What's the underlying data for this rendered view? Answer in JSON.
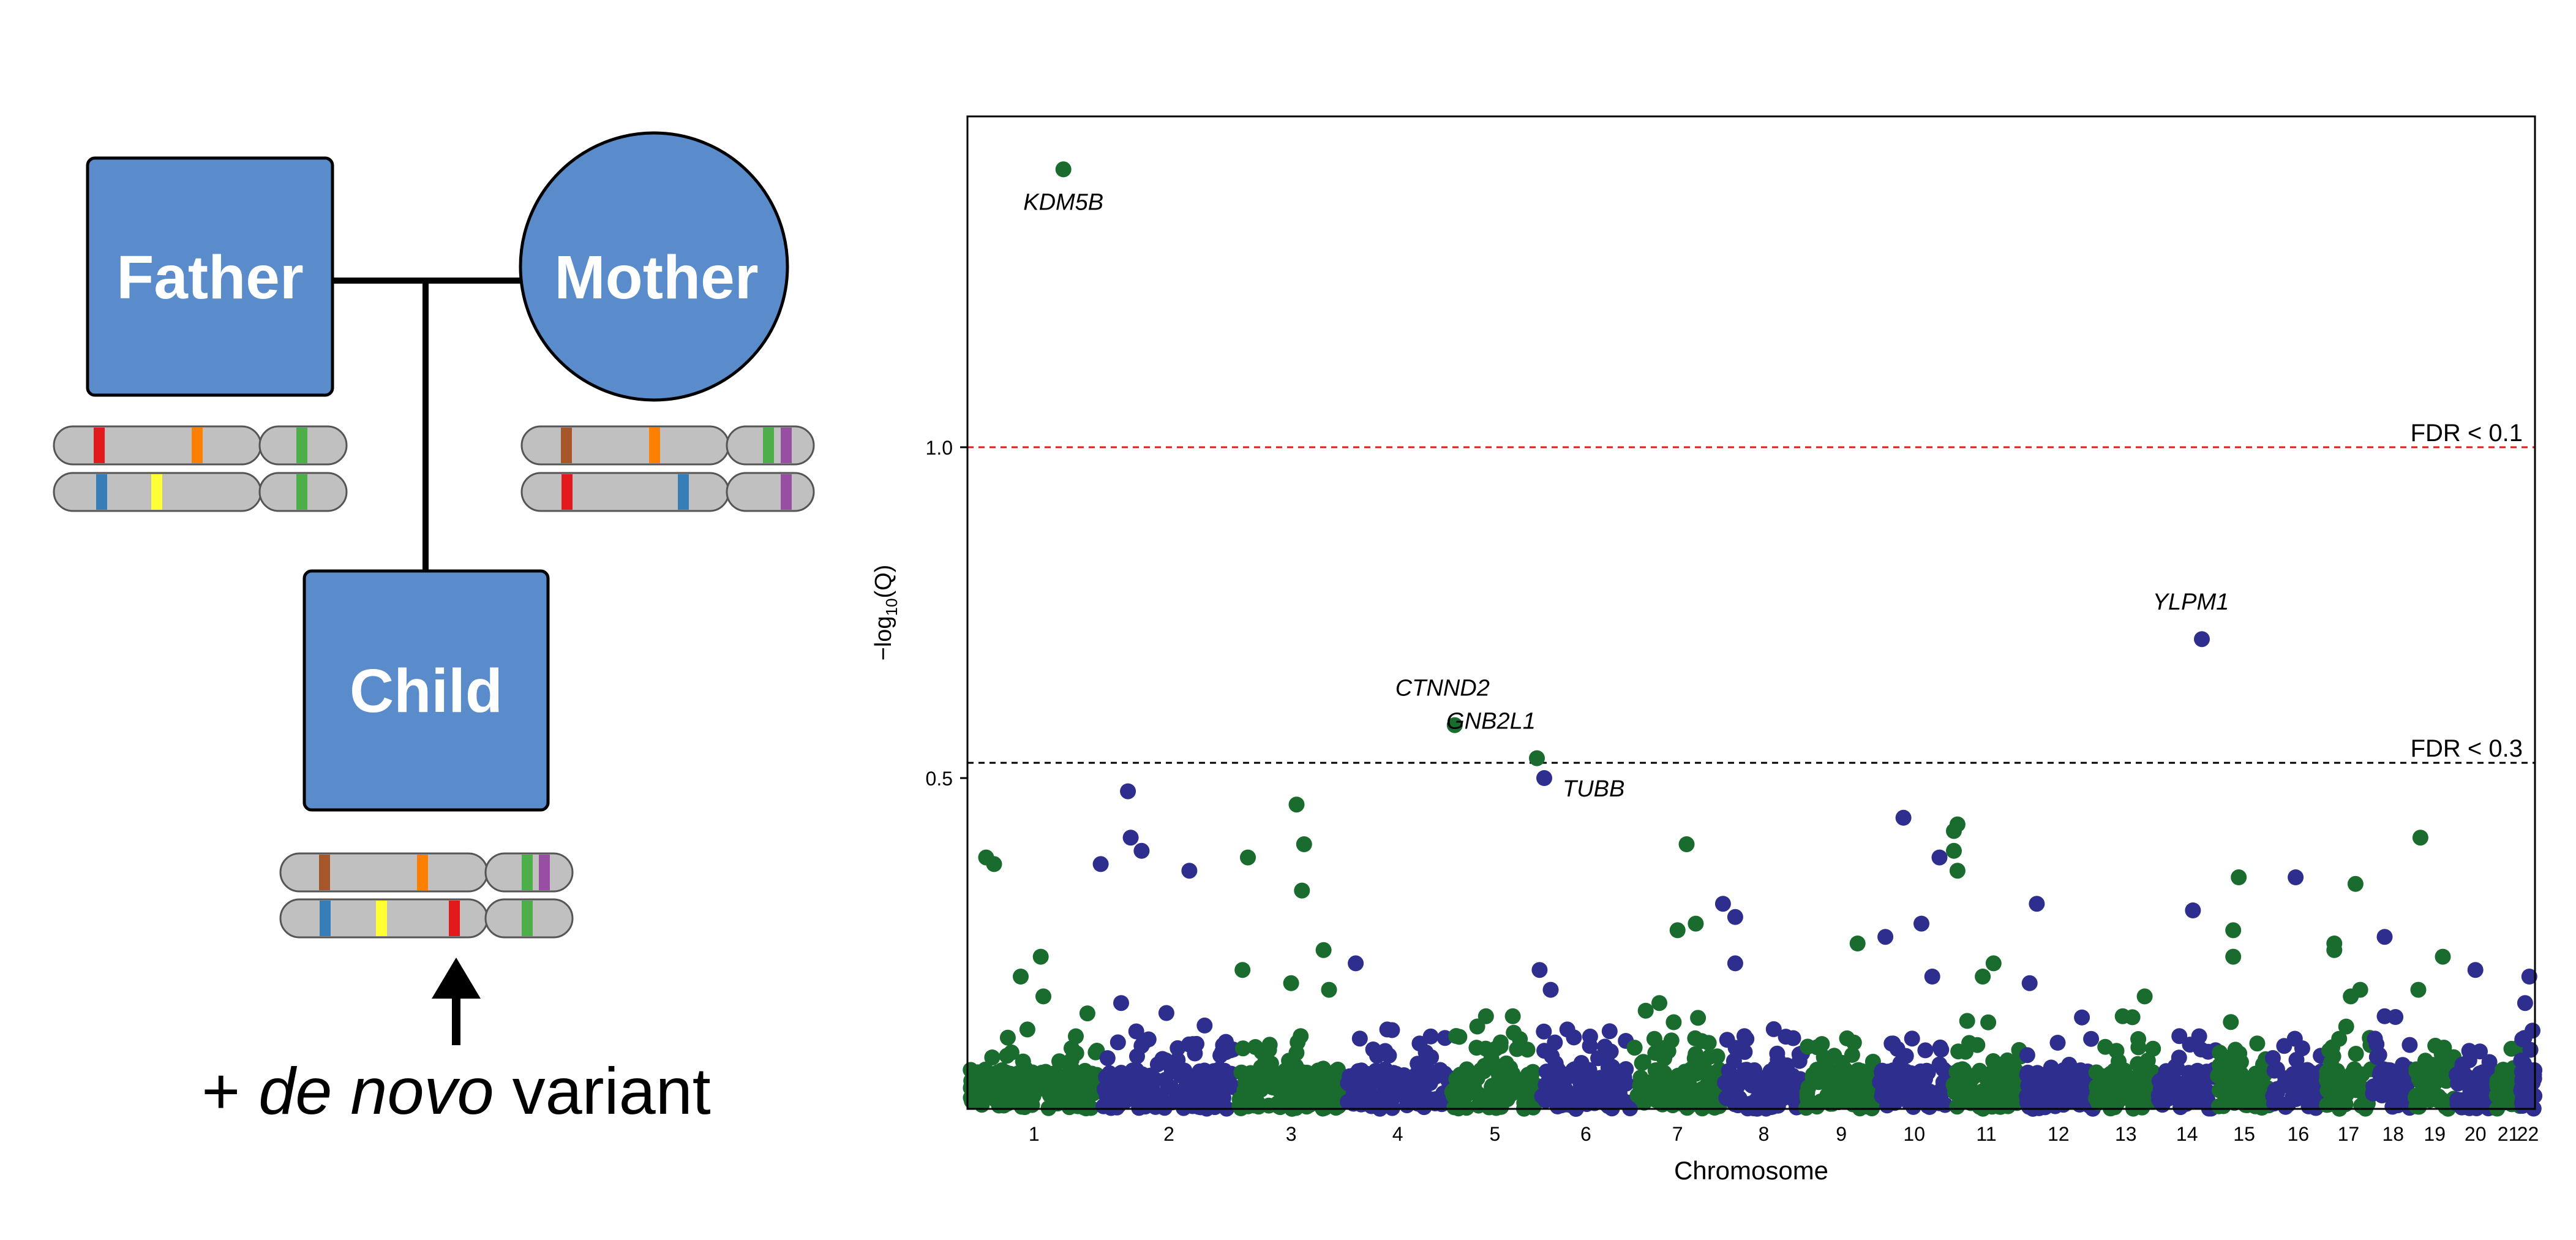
{
  "pedigree": {
    "father_label": "Father",
    "mother_label": "Mother",
    "child_label": "Child",
    "variant_prefix": "+ ",
    "variant_italic": "de novo",
    "variant_suffix": " variant",
    "colors": {
      "box_fill": "#5a8ccb",
      "chromosome_fill": "#c0c0c0",
      "red": "#e31a1c",
      "orange": "#ff7f00",
      "green": "#4daf4a",
      "blue": "#377eb8",
      "yellow": "#ffff33",
      "brown": "#a65628",
      "purple": "#984ea3"
    }
  },
  "chart_data": {
    "type": "scatter",
    "title": "",
    "xlabel": "Chromosome",
    "ylabel_prefix": "−log",
    "ylabel_sub": "10",
    "ylabel_suffix": "(Q)",
    "ylim": [
      0,
      1.5
    ],
    "yticks": [
      0.5,
      1.0
    ],
    "ytick_labels": [
      "0.5",
      "1.0"
    ],
    "grid": false,
    "series_colors": {
      "odd": "#1a6b2e",
      "even": "#2e2e8f"
    },
    "chromosomes": [
      "1",
      "2",
      "3",
      "4",
      "5",
      "6",
      "7",
      "8",
      "9",
      "10",
      "11",
      "12",
      "13",
      "14",
      "15",
      "16",
      "17",
      "18",
      "19",
      "20",
      "21",
      "22"
    ],
    "chromosome_spans": [
      [
        0,
        0.085
      ],
      [
        0.085,
        0.172
      ],
      [
        0.172,
        0.241
      ],
      [
        0.241,
        0.308
      ],
      [
        0.308,
        0.365
      ],
      [
        0.365,
        0.424
      ],
      [
        0.424,
        0.482
      ],
      [
        0.482,
        0.534
      ],
      [
        0.534,
        0.581
      ],
      [
        0.581,
        0.627
      ],
      [
        0.627,
        0.673
      ],
      [
        0.673,
        0.719
      ],
      [
        0.719,
        0.759
      ],
      [
        0.759,
        0.797
      ],
      [
        0.797,
        0.832
      ],
      [
        0.832,
        0.866
      ],
      [
        0.866,
        0.896
      ],
      [
        0.896,
        0.923
      ],
      [
        0.923,
        0.949
      ],
      [
        0.949,
        0.975
      ],
      [
        0.975,
        0.991
      ],
      [
        0.991,
        1.0
      ]
    ],
    "thresholds": [
      {
        "label": "FDR < 0.1",
        "value": 1.0,
        "color": "#e31a1c"
      },
      {
        "label": "FDR < 0.3",
        "value": 0.523,
        "color": "#000000"
      }
    ],
    "labeled_genes": [
      {
        "gene": "KDM5B",
        "chrom": "1",
        "pos": 0.72,
        "q": 1.42
      },
      {
        "gene": "CTNND2",
        "chrom": "5",
        "pos": 0.05,
        "q": 0.58
      },
      {
        "gene": "GNB2L1",
        "chrom": "5",
        "pos": 0.97,
        "q": 0.53
      },
      {
        "gene": "TUBB",
        "chrom": "6",
        "pos": 0.05,
        "q": 0.5
      },
      {
        "gene": "YLPM1",
        "chrom": "14",
        "pos": 0.75,
        "q": 0.71
      }
    ],
    "notable_points": [
      {
        "chrom": "1",
        "pos": 0.14,
        "q": 0.38
      },
      {
        "chrom": "1",
        "pos": 0.2,
        "q": 0.37
      },
      {
        "chrom": "1",
        "pos": 0.4,
        "q": 0.2
      },
      {
        "chrom": "1",
        "pos": 0.55,
        "q": 0.23
      },
      {
        "chrom": "1",
        "pos": 0.57,
        "q": 0.17
      },
      {
        "chrom": "1",
        "pos": 0.45,
        "q": 0.12
      },
      {
        "chrom": "2",
        "pos": 0.0,
        "q": 0.37
      },
      {
        "chrom": "2",
        "pos": 0.2,
        "q": 0.48
      },
      {
        "chrom": "2",
        "pos": 0.22,
        "q": 0.41
      },
      {
        "chrom": "2",
        "pos": 0.3,
        "q": 0.39
      },
      {
        "chrom": "2",
        "pos": 0.65,
        "q": 0.36
      },
      {
        "chrom": "2",
        "pos": 0.15,
        "q": 0.16
      },
      {
        "chrom": "3",
        "pos": 0.1,
        "q": 0.38
      },
      {
        "chrom": "3",
        "pos": 0.55,
        "q": 0.46
      },
      {
        "chrom": "3",
        "pos": 0.62,
        "q": 0.4
      },
      {
        "chrom": "3",
        "pos": 0.6,
        "q": 0.33
      },
      {
        "chrom": "3",
        "pos": 0.8,
        "q": 0.24
      },
      {
        "chrom": "3",
        "pos": 0.85,
        "q": 0.18
      },
      {
        "chrom": "3",
        "pos": 0.5,
        "q": 0.19
      },
      {
        "chrom": "3",
        "pos": 0.05,
        "q": 0.21
      },
      {
        "chrom": "4",
        "pos": 0.1,
        "q": 0.22
      },
      {
        "chrom": "4",
        "pos": 0.4,
        "q": 0.12
      },
      {
        "chrom": "5",
        "pos": 0.4,
        "q": 0.14
      },
      {
        "chrom": "5",
        "pos": 0.7,
        "q": 0.14
      },
      {
        "chrom": "6",
        "pos": 0.0,
        "q": 0.21
      },
      {
        "chrom": "6",
        "pos": 0.12,
        "q": 0.18
      },
      {
        "chrom": "6",
        "pos": 0.3,
        "q": 0.12
      },
      {
        "chrom": "7",
        "pos": 0.3,
        "q": 0.16
      },
      {
        "chrom": "7",
        "pos": 0.5,
        "q": 0.27
      },
      {
        "chrom": "7",
        "pos": 0.7,
        "q": 0.28
      },
      {
        "chrom": "7",
        "pos": 0.6,
        "q": 0.4
      },
      {
        "chrom": "8",
        "pos": 0.0,
        "q": 0.31
      },
      {
        "chrom": "8",
        "pos": 0.15,
        "q": 0.29
      },
      {
        "chrom": "8",
        "pos": 0.15,
        "q": 0.22
      },
      {
        "chrom": "9",
        "pos": 0.72,
        "q": 0.25
      },
      {
        "chrom": "10",
        "pos": 0.1,
        "q": 0.26
      },
      {
        "chrom": "10",
        "pos": 0.35,
        "q": 0.44
      },
      {
        "chrom": "10",
        "pos": 0.6,
        "q": 0.28
      },
      {
        "chrom": "10",
        "pos": 0.85,
        "q": 0.38
      },
      {
        "chrom": "10",
        "pos": 0.75,
        "q": 0.2
      },
      {
        "chrom": "11",
        "pos": 0.05,
        "q": 0.42
      },
      {
        "chrom": "11",
        "pos": 0.1,
        "q": 0.43
      },
      {
        "chrom": "11",
        "pos": 0.05,
        "q": 0.39
      },
      {
        "chrom": "11",
        "pos": 0.1,
        "q": 0.36
      },
      {
        "chrom": "11",
        "pos": 0.45,
        "q": 0.2
      },
      {
        "chrom": "11",
        "pos": 0.6,
        "q": 0.22
      },
      {
        "chrom": "12",
        "pos": 0.2,
        "q": 0.31
      },
      {
        "chrom": "12",
        "pos": 0.1,
        "q": 0.19
      },
      {
        "chrom": "13",
        "pos": 0.45,
        "q": 0.14
      },
      {
        "chrom": "13",
        "pos": 0.8,
        "q": 0.17
      },
      {
        "chrom": "14",
        "pos": 0.6,
        "q": 0.3
      },
      {
        "chrom": "15",
        "pos": 0.4,
        "q": 0.35
      },
      {
        "chrom": "15",
        "pos": 0.3,
        "q": 0.27
      },
      {
        "chrom": "15",
        "pos": 0.3,
        "q": 0.23
      },
      {
        "chrom": "16",
        "pos": 0.45,
        "q": 0.35
      },
      {
        "chrom": "17",
        "pos": 0.2,
        "q": 0.25
      },
      {
        "chrom": "17",
        "pos": 0.2,
        "q": 0.24
      },
      {
        "chrom": "17",
        "pos": 0.65,
        "q": 0.34
      },
      {
        "chrom": "17",
        "pos": 0.55,
        "q": 0.17
      },
      {
        "chrom": "17",
        "pos": 0.75,
        "q": 0.18
      },
      {
        "chrom": "18",
        "pos": 0.3,
        "q": 0.26
      },
      {
        "chrom": "18",
        "pos": 0.3,
        "q": 0.14
      },
      {
        "chrom": "19",
        "pos": 0.15,
        "q": 0.41
      },
      {
        "chrom": "19",
        "pos": 0.7,
        "q": 0.23
      },
      {
        "chrom": "19",
        "pos": 0.1,
        "q": 0.18
      },
      {
        "chrom": "20",
        "pos": 0.5,
        "q": 0.21
      },
      {
        "chrom": "22",
        "pos": 0.6,
        "q": 0.2
      },
      {
        "chrom": "22",
        "pos": 0.3,
        "q": 0.16
      }
    ]
  }
}
